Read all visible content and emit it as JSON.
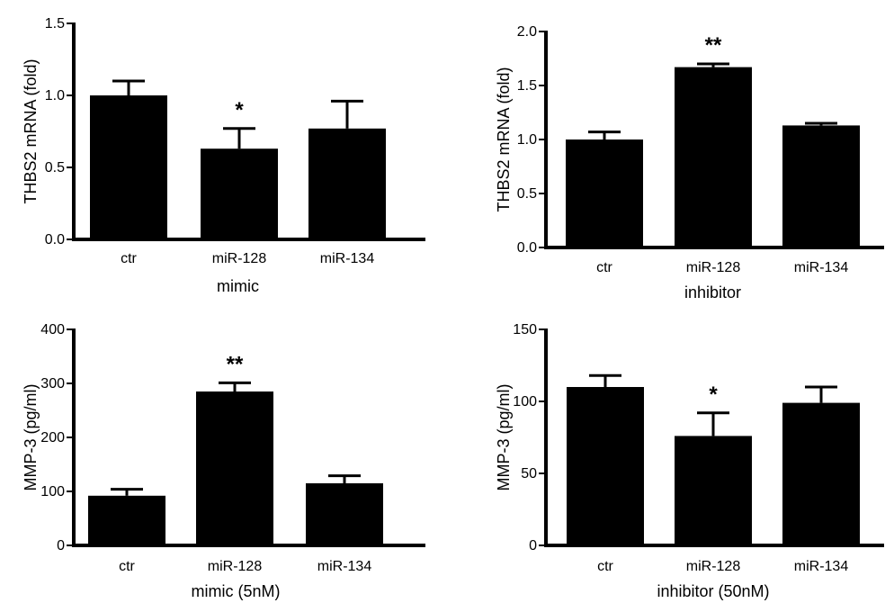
{
  "chart_data": [
    {
      "type": "bar",
      "categories": [
        "ctr",
        "miR-128",
        "miR-134"
      ],
      "values": [
        1.0,
        0.63,
        0.77
      ],
      "errors": [
        0.1,
        0.14,
        0.19
      ],
      "significance": [
        "",
        "*",
        ""
      ],
      "xlabel": "mimic",
      "ylabel": "THBS2 mRNA (fold)",
      "ylim": [
        0,
        1.5
      ],
      "yticks": [
        0.0,
        0.5,
        1.0,
        1.5
      ],
      "ytick_labels": [
        "0.0",
        "0.5",
        "1.0",
        "1.5"
      ],
      "bar_color": "#000000",
      "grid": false
    },
    {
      "type": "bar",
      "categories": [
        "ctr",
        "miR-128",
        "miR-134"
      ],
      "values": [
        1.0,
        1.67,
        1.13
      ],
      "errors": [
        0.07,
        0.03,
        0.02
      ],
      "significance": [
        "",
        "**",
        ""
      ],
      "xlabel": "inhibitor",
      "ylabel": "THBS2 mRNA (fold)",
      "ylim": [
        0,
        2.0
      ],
      "yticks": [
        0.0,
        0.5,
        1.0,
        1.5,
        2.0
      ],
      "ytick_labels": [
        "0.0",
        "0.5",
        "1.0",
        "1.5",
        "2.0"
      ],
      "bar_color": "#000000",
      "grid": false
    },
    {
      "type": "bar",
      "categories": [
        "ctr",
        "miR-128",
        "miR-134"
      ],
      "values": [
        92,
        285,
        115
      ],
      "errors": [
        12,
        16,
        14
      ],
      "significance": [
        "",
        "**",
        ""
      ],
      "xlabel": "mimic (5nM)",
      "ylabel": "MMP-3 (pg/ml)",
      "ylim": [
        0,
        400
      ],
      "yticks": [
        0,
        100,
        200,
        300,
        400
      ],
      "ytick_labels": [
        "0",
        "100",
        "200",
        "300",
        "400"
      ],
      "bar_color": "#000000",
      "grid": false
    },
    {
      "type": "bar",
      "categories": [
        "ctr",
        "miR-128",
        "miR-134"
      ],
      "values": [
        110,
        76,
        99
      ],
      "errors": [
        8,
        16,
        11
      ],
      "significance": [
        "",
        "*",
        ""
      ],
      "xlabel": "inhibitor (50nM)",
      "ylabel": "MMP-3 (pg/ml)",
      "ylim": [
        0,
        150
      ],
      "yticks": [
        0,
        50,
        100,
        150
      ],
      "ytick_labels": [
        "0",
        "50",
        "100",
        "150"
      ],
      "bar_color": "#000000",
      "grid": false
    }
  ]
}
